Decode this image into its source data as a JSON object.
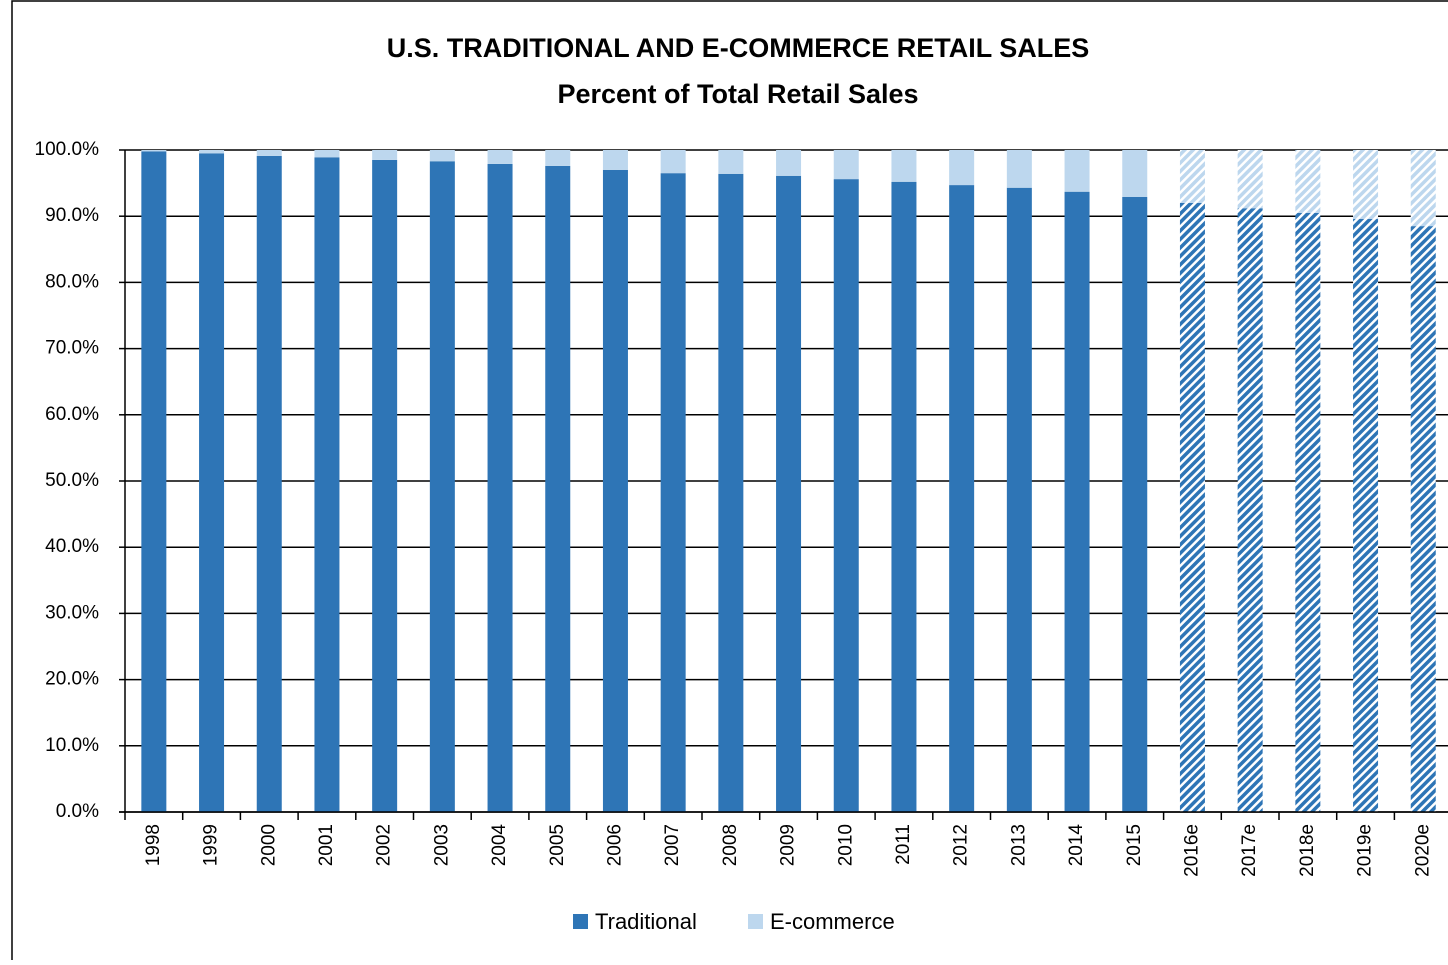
{
  "chart_data": {
    "type": "stacked-bar",
    "title": "U.S. TRADITIONAL AND E-COMMERCE RETAIL SALES",
    "subtitle": "Percent of Total Retail Sales",
    "categories": [
      "1998",
      "1999",
      "2000",
      "2001",
      "2002",
      "2003",
      "2004",
      "2005",
      "2006",
      "2007",
      "2008",
      "2009",
      "2010",
      "2011",
      "2012",
      "2013",
      "2014",
      "2015",
      "2016e",
      "2017e",
      "2018e",
      "2019e",
      "2020e"
    ],
    "hatched": [
      false,
      false,
      false,
      false,
      false,
      false,
      false,
      false,
      false,
      false,
      false,
      false,
      false,
      false,
      false,
      false,
      false,
      false,
      true,
      true,
      true,
      true,
      true
    ],
    "series": [
      {
        "name": "Traditional",
        "color": "#2e75b6",
        "values": [
          99.8,
          99.5,
          99.1,
          98.9,
          98.5,
          98.3,
          97.9,
          97.6,
          97.0,
          96.5,
          96.4,
          96.1,
          95.6,
          95.2,
          94.7,
          94.3,
          93.7,
          92.9,
          92.0,
          91.2,
          90.5,
          89.6,
          88.5
        ]
      },
      {
        "name": "E-commerce",
        "color": "#bdd7ee",
        "values": [
          0.2,
          0.5,
          0.9,
          1.1,
          1.5,
          1.7,
          2.1,
          2.4,
          3.0,
          3.5,
          3.6,
          3.9,
          4.4,
          4.8,
          5.3,
          5.7,
          6.3,
          7.1,
          8.0,
          8.8,
          9.5,
          10.4,
          11.5
        ]
      }
    ],
    "ylim": [
      0,
      100
    ],
    "yticks": [
      {
        "value": 0,
        "label": "0.0%"
      },
      {
        "value": 10,
        "label": "10.0%"
      },
      {
        "value": 20,
        "label": "20.0%"
      },
      {
        "value": 30,
        "label": "30.0%"
      },
      {
        "value": 40,
        "label": "40.0%"
      },
      {
        "value": 50,
        "label": "50.0%"
      },
      {
        "value": 60,
        "label": "60.0%"
      },
      {
        "value": 70,
        "label": "70.0%"
      },
      {
        "value": 80,
        "label": "80.0%"
      },
      {
        "value": 90,
        "label": "90.0%"
      },
      {
        "value": 100,
        "label": "100.0%"
      }
    ],
    "grid": true,
    "legend": "bottom"
  }
}
